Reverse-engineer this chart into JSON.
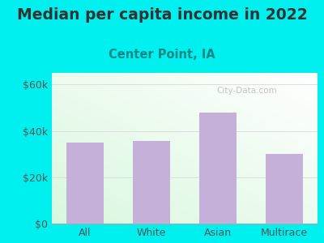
{
  "title": "Median per capita income in 2022",
  "subtitle": "Center Point, IA",
  "categories": [
    "All",
    "White",
    "Asian",
    "Multirace"
  ],
  "values": [
    35000,
    35500,
    48000,
    30000
  ],
  "bar_color": "#c4b0d8",
  "background_color": "#00f0f0",
  "yticks": [
    0,
    20000,
    40000,
    60000
  ],
  "ytick_labels": [
    "$0",
    "$20k",
    "$40k",
    "$60k"
  ],
  "ylim": [
    0,
    65000
  ],
  "title_fontsize": 13.5,
  "subtitle_fontsize": 10.5,
  "tick_fontsize": 9,
  "title_color": "#333333",
  "subtitle_color": "#008888",
  "tick_color": "#555555",
  "watermark": "City-Data.com",
  "grid_color": "#dddddd"
}
